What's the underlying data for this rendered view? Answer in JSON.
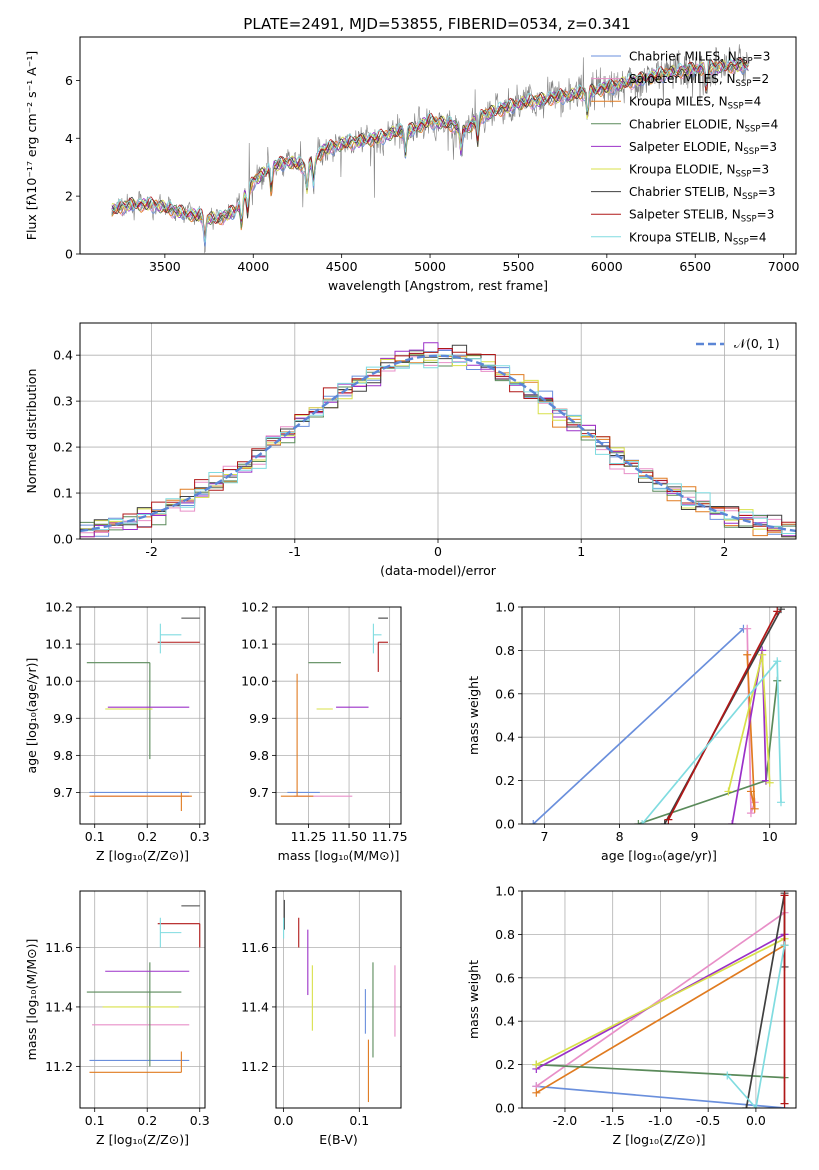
{
  "title": "PLATE=2491, MJD=53855, FIBERID=0534, z=0.341",
  "colors": {
    "Chabrier MILES": "#6a8fdc",
    "Salpeter MILES": "#e88fc8",
    "Kroupa MILES": "#e07b20",
    "Chabrier ELODIE": "#5a8a5a",
    "Salpeter ELODIE": "#9b30c8",
    "Kroupa ELODIE": "#d8e04a",
    "Chabrier STELIB": "#404040",
    "Salpeter STELIB": "#b01818",
    "Kroupa STELIB": "#80dce0",
    "data": "#808080",
    "normal": "#5b86d6",
    "grid": "#b0b0b0"
  },
  "chart_data": [
    {
      "type": "line",
      "id": "spectrum",
      "xlabel": "wavelength [Angstrom, rest frame]",
      "ylabel": "Flux [fλ10⁻¹⁷ erg cm⁻² s⁻¹ A⁻¹]",
      "xlim": [
        3020,
        7070
      ],
      "ylim": [
        0,
        7.5
      ],
      "xticks": [
        3500,
        4000,
        4500,
        5000,
        5500,
        6000,
        6500,
        7000
      ],
      "yticks": [
        0,
        2,
        4,
        6
      ],
      "legend_position": "top-right",
      "x_range": [
        3200,
        6800
      ],
      "continuum": [
        [
          3200,
          1.5
        ],
        [
          3300,
          1.7
        ],
        [
          3450,
          1.7
        ],
        [
          3550,
          1.5
        ],
        [
          3700,
          1.3
        ],
        [
          3800,
          1.2
        ],
        [
          3900,
          1.5
        ],
        [
          4000,
          2.5
        ],
        [
          4100,
          3.0
        ],
        [
          4200,
          3.2
        ],
        [
          4300,
          3.0
        ],
        [
          4400,
          3.6
        ],
        [
          4500,
          3.8
        ],
        [
          4700,
          4.0
        ],
        [
          4800,
          4.2
        ],
        [
          4900,
          4.3
        ],
        [
          5000,
          4.6
        ],
        [
          5100,
          4.5
        ],
        [
          5200,
          4.3
        ],
        [
          5300,
          4.8
        ],
        [
          5500,
          5.2
        ],
        [
          5700,
          5.4
        ],
        [
          5900,
          5.6
        ],
        [
          6100,
          5.9
        ],
        [
          6300,
          6.2
        ],
        [
          6500,
          6.4
        ],
        [
          6700,
          6.5
        ],
        [
          6800,
          6.5
        ]
      ],
      "series": [
        {
          "name": "Chabrier MILES",
          "nssp": "3"
        },
        {
          "name": "Salpeter MILES",
          "nssp": "2"
        },
        {
          "name": "Kroupa MILES",
          "nssp": "4"
        },
        {
          "name": "Chabrier ELODIE",
          "nssp": "4"
        },
        {
          "name": "Salpeter ELODIE",
          "nssp": "3"
        },
        {
          "name": "Kroupa ELODIE",
          "nssp": "3"
        },
        {
          "name": "Chabrier STELIB",
          "nssp": "3"
        },
        {
          "name": "Salpeter STELIB",
          "nssp": "3"
        },
        {
          "name": "Kroupa STELIB",
          "nssp": "4"
        }
      ]
    },
    {
      "type": "histogram",
      "id": "residuals",
      "xlabel": "(data-model)/error",
      "ylabel": "Normed distribution",
      "xlim": [
        -2.5,
        2.5
      ],
      "ylim": [
        0,
        0.47
      ],
      "xticks": [
        -2,
        -1,
        0,
        1,
        2
      ],
      "yticks": [
        0,
        0.1,
        0.2,
        0.3,
        0.4
      ],
      "legend": "𝒩(0, 1)",
      "legend_position": "top-right",
      "bin_width": 0.1
    },
    {
      "type": "errorbar",
      "id": "age-vs-Z",
      "xlabel": "Z [log₁₀(Z/Z⊙)]",
      "ylabel": "age  [log₁₀(age/yr)]",
      "xlim": [
        0.072,
        0.31
      ],
      "ylim": [
        9.615,
        10.2
      ],
      "xticks": [
        0.1,
        0.2,
        0.3
      ],
      "yticks": [
        9.7,
        9.8,
        9.9,
        10.0,
        10.1,
        10.2
      ],
      "points": [
        {
          "s": "Chabrier MILES",
          "x": 0.205,
          "xerr": [
            0.115,
            0.075
          ],
          "y": 9.7,
          "yerr": [
            0.0,
            0.0
          ]
        },
        {
          "s": "Salpeter MILES",
          "x": 0.205,
          "xerr": [
            0.11,
            0.075
          ],
          "y": 9.69,
          "yerr": [
            0.0,
            0.0
          ]
        },
        {
          "s": "Kroupa MILES",
          "x": 0.265,
          "xerr": [
            0.175,
            0.02
          ],
          "y": 9.69,
          "yerr": [
            0.04,
            0.01
          ]
        },
        {
          "s": "Chabrier ELODIE",
          "x": 0.205,
          "xerr": [
            0.12,
            0.0
          ],
          "y": 10.05,
          "yerr": [
            0.26,
            0.0
          ]
        },
        {
          "s": "Salpeter ELODIE",
          "x": 0.21,
          "xerr": [
            0.085,
            0.07
          ],
          "y": 9.93,
          "yerr": [
            0.0,
            0.0
          ]
        },
        {
          "s": "Kroupa ELODIE",
          "x": 0.21,
          "xerr": [
            0.09,
            0.0
          ],
          "y": 9.925,
          "yerr": [
            0.0,
            0.0
          ]
        },
        {
          "s": "Chabrier STELIB",
          "x": 0.3,
          "xerr": [
            0.035,
            0.0
          ],
          "y": 10.17,
          "yerr": [
            0.0,
            0.0
          ]
        },
        {
          "s": "Salpeter STELIB",
          "x": 0.3,
          "xerr": [
            0.08,
            0.0
          ],
          "y": 10.105,
          "yerr": [
            0.0,
            0.0
          ]
        },
        {
          "s": "Kroupa STELIB",
          "x": 0.225,
          "xerr": [
            0.0,
            0.04
          ],
          "y": 10.125,
          "yerr": [
            0.05,
            0.03
          ]
        }
      ]
    },
    {
      "type": "errorbar",
      "id": "age-vs-mass",
      "xlabel": "mass [log₁₀(M/M⊙)]",
      "ylabel": "",
      "xlim": [
        11.05,
        11.82
      ],
      "ylim": [
        9.615,
        10.2
      ],
      "xticks": [
        11.25,
        11.5,
        11.75
      ],
      "yticks": [
        9.7,
        9.8,
        9.9,
        10.0,
        10.1,
        10.2
      ],
      "points": [
        {
          "s": "Chabrier MILES",
          "x": 11.22,
          "xerr": [
            0.1,
            0.1
          ],
          "y": 9.7,
          "yerr": [
            0.0,
            0.0
          ]
        },
        {
          "s": "Salpeter MILES",
          "x": 11.34,
          "xerr": [
            0.18,
            0.18
          ],
          "y": 9.69,
          "yerr": [
            0.0,
            0.0
          ]
        },
        {
          "s": "Kroupa MILES",
          "x": 11.18,
          "xerr": [
            0.1,
            0.1
          ],
          "y": 9.69,
          "yerr": [
            0.0,
            0.33
          ]
        },
        {
          "s": "Chabrier ELODIE",
          "x": 11.45,
          "xerr": [
            0.2,
            0.0
          ],
          "y": 10.05,
          "yerr": [
            0.0,
            0.0
          ]
        },
        {
          "s": "Salpeter ELODIE",
          "x": 11.52,
          "xerr": [
            0.1,
            0.1
          ],
          "y": 9.93,
          "yerr": [
            0.0,
            0.0
          ]
        },
        {
          "s": "Kroupa ELODIE",
          "x": 11.4,
          "xerr": [
            0.1,
            0.0
          ],
          "y": 9.925,
          "yerr": [
            0.0,
            0.0
          ]
        },
        {
          "s": "Chabrier STELIB",
          "x": 11.74,
          "xerr": [
            0.06,
            0.0
          ],
          "y": 10.17,
          "yerr": [
            0.0,
            0.0
          ]
        },
        {
          "s": "Salpeter STELIB",
          "x": 11.68,
          "xerr": [
            0.0,
            0.06
          ],
          "y": 10.105,
          "yerr": [
            0.08,
            0.0
          ]
        },
        {
          "s": "Kroupa STELIB",
          "x": 11.65,
          "xerr": [
            0.0,
            0.05
          ],
          "y": 10.125,
          "yerr": [
            0.05,
            0.03
          ]
        }
      ]
    },
    {
      "type": "line",
      "id": "weight-vs-age",
      "xlabel": "age  [log₁₀(age/yr)]",
      "ylabel": "mass weight",
      "xlim": [
        6.7,
        10.35
      ],
      "ylim": [
        0,
        1.0
      ],
      "xticks": [
        7,
        8,
        9,
        10
      ],
      "yticks": [
        0,
        0.2,
        0.4,
        0.6,
        0.8,
        1.0
      ],
      "series": [
        {
          "s": "Chabrier MILES",
          "x": [
            6.85,
            9.65
          ],
          "y": [
            0.0,
            0.9
          ]
        },
        {
          "s": "Salpeter MILES",
          "x": [
            9.7,
            9.75,
            9.8
          ],
          "y": [
            0.9,
            0.05,
            0.1
          ]
        },
        {
          "s": "Kroupa MILES",
          "x": [
            9.7,
            9.8,
            9.75
          ],
          "y": [
            0.78,
            0.07,
            0.15
          ]
        },
        {
          "s": "Chabrier ELODIE",
          "x": [
            8.25,
            9.95,
            10.1
          ],
          "y": [
            0.0,
            0.2,
            0.66
          ]
        },
        {
          "s": "Salpeter ELODIE",
          "x": [
            9.5,
            9.9,
            9.95
          ],
          "y": [
            0.0,
            0.8,
            0.2
          ]
        },
        {
          "s": "Kroupa ELODIE",
          "x": [
            9.45,
            9.9,
            10.0
          ],
          "y": [
            0.15,
            0.78,
            0.19
          ]
        },
        {
          "s": "Chabrier STELIB",
          "x": [
            8.6,
            10.15
          ],
          "y": [
            0.0,
            0.99
          ]
        },
        {
          "s": "Salpeter STELIB",
          "x": [
            8.65,
            10.1
          ],
          "y": [
            0.02,
            0.98
          ]
        },
        {
          "s": "Kroupa STELIB",
          "x": [
            8.3,
            10.1,
            10.15
          ],
          "y": [
            0.0,
            0.75,
            0.1
          ]
        }
      ]
    },
    {
      "type": "errorbar",
      "id": "mass-vs-Z",
      "xlabel": "Z [log₁₀(Z/Z⊙)]",
      "ylabel": "mass [log₁₀(M/M⊙)]",
      "xlim": [
        0.072,
        0.31
      ],
      "ylim": [
        11.06,
        11.79
      ],
      "xticks": [
        0.1,
        0.2,
        0.3
      ],
      "yticks": [
        11.2,
        11.4,
        11.6
      ],
      "points": [
        {
          "s": "Chabrier MILES",
          "x": 0.205,
          "xerr": [
            0.115,
            0.075
          ],
          "y": 11.22,
          "yerr": [
            0.0,
            0.0
          ]
        },
        {
          "s": "Salpeter MILES",
          "x": 0.205,
          "xerr": [
            0.11,
            0.075
          ],
          "y": 11.34,
          "yerr": [
            0.0,
            0.0
          ]
        },
        {
          "s": "Kroupa MILES",
          "x": 0.265,
          "xerr": [
            0.175,
            0.0
          ],
          "y": 11.18,
          "yerr": [
            0.0,
            0.07
          ]
        },
        {
          "s": "Chabrier ELODIE",
          "x": 0.205,
          "xerr": [
            0.12,
            0.06
          ],
          "y": 11.45,
          "yerr": [
            0.25,
            0.1
          ]
        },
        {
          "s": "Salpeter ELODIE",
          "x": 0.21,
          "xerr": [
            0.09,
            0.07
          ],
          "y": 11.52,
          "yerr": [
            0.0,
            0.0
          ]
        },
        {
          "s": "Kroupa ELODIE",
          "x": 0.21,
          "xerr": [
            0.095,
            0.05
          ],
          "y": 11.4,
          "yerr": [
            0.0,
            0.0
          ]
        },
        {
          "s": "Chabrier STELIB",
          "x": 0.3,
          "xerr": [
            0.035,
            0.0
          ],
          "y": 11.74,
          "yerr": [
            0.0,
            0.0
          ]
        },
        {
          "s": "Salpeter STELIB",
          "x": 0.3,
          "xerr": [
            0.08,
            0.0
          ],
          "y": 11.68,
          "yerr": [
            0.08,
            0.0
          ]
        },
        {
          "s": "Kroupa STELIB",
          "x": 0.225,
          "xerr": [
            0.0,
            0.04
          ],
          "y": 11.65,
          "yerr": [
            0.05,
            0.05
          ]
        }
      ]
    },
    {
      "type": "errorbar",
      "id": "mass-vs-ebv",
      "xlabel": "E(B-V)",
      "ylabel": "",
      "xlim": [
        -0.01,
        0.155
      ],
      "ylim": [
        11.06,
        11.79
      ],
      "xticks": [
        0.0,
        0.1
      ],
      "yticks": [
        11.2,
        11.4,
        11.6
      ],
      "points": [
        {
          "s": "Chabrier MILES",
          "x": 0.108,
          "y": 11.31,
          "yerr": [
            0.0,
            0.15
          ]
        },
        {
          "s": "Salpeter MILES",
          "x": 0.147,
          "y": 11.39,
          "yerr": [
            0.09,
            0.15
          ]
        },
        {
          "s": "Kroupa MILES",
          "x": 0.112,
          "y": 11.16,
          "yerr": [
            0.08,
            0.13
          ]
        },
        {
          "s": "Chabrier ELODIE",
          "x": 0.118,
          "y": 11.42,
          "yerr": [
            0.19,
            0.13
          ]
        },
        {
          "s": "Salpeter ELODIE",
          "x": 0.032,
          "y": 11.55,
          "yerr": [
            0.11,
            0.11
          ]
        },
        {
          "s": "Kroupa ELODIE",
          "x": 0.038,
          "y": 11.42,
          "yerr": [
            0.1,
            0.12
          ]
        },
        {
          "s": "Chabrier STELIB",
          "x": 0.001,
          "y": 11.7,
          "yerr": [
            0.04,
            0.06
          ]
        },
        {
          "s": "Salpeter STELIB",
          "x": 0.02,
          "y": 11.64,
          "yerr": [
            0.04,
            0.06
          ]
        },
        {
          "s": "Kroupa STELIB",
          "x": 0.0,
          "y": 11.67,
          "yerr": [
            0.04,
            0.03
          ]
        }
      ]
    },
    {
      "type": "line",
      "id": "weight-vs-Z",
      "xlabel": "Z [log₁₀(Z/Z⊙)]",
      "ylabel": "mass weight",
      "xlim": [
        -2.45,
        0.42
      ],
      "ylim": [
        0,
        1.0
      ],
      "xticks": [
        -2.0,
        -1.5,
        -1.0,
        -0.5,
        0.0
      ],
      "yticks": [
        0,
        0.2,
        0.4,
        0.6,
        0.8,
        1.0
      ],
      "series": [
        {
          "s": "Chabrier MILES",
          "x": [
            -2.3,
            0.3
          ],
          "y": [
            0.1,
            0.0
          ]
        },
        {
          "s": "Salpeter MILES",
          "x": [
            -2.3,
            0.3
          ],
          "y": [
            0.1,
            0.9
          ]
        },
        {
          "s": "Kroupa MILES",
          "x": [
            -2.3,
            0.3
          ],
          "y": [
            0.07,
            0.75
          ]
        },
        {
          "s": "Chabrier ELODIE",
          "x": [
            -2.3,
            0.3
          ],
          "y": [
            0.2,
            0.14
          ]
        },
        {
          "s": "Salpeter ELODIE",
          "x": [
            -2.3,
            0.3
          ],
          "y": [
            0.18,
            0.8
          ]
        },
        {
          "s": "Kroupa ELODIE",
          "x": [
            -2.3,
            0.3
          ],
          "y": [
            0.2,
            0.78
          ]
        },
        {
          "s": "Chabrier STELIB",
          "x": [
            -0.1,
            0.3,
            0.3
          ],
          "y": [
            0.0,
            0.99,
            0.65
          ]
        },
        {
          "s": "Salpeter STELIB",
          "x": [
            0.3,
            0.3
          ],
          "y": [
            0.02,
            0.98
          ]
        },
        {
          "s": "Kroupa STELIB",
          "x": [
            -0.3,
            0.0,
            0.3
          ],
          "y": [
            0.15,
            0.0,
            0.75
          ]
        }
      ]
    }
  ]
}
